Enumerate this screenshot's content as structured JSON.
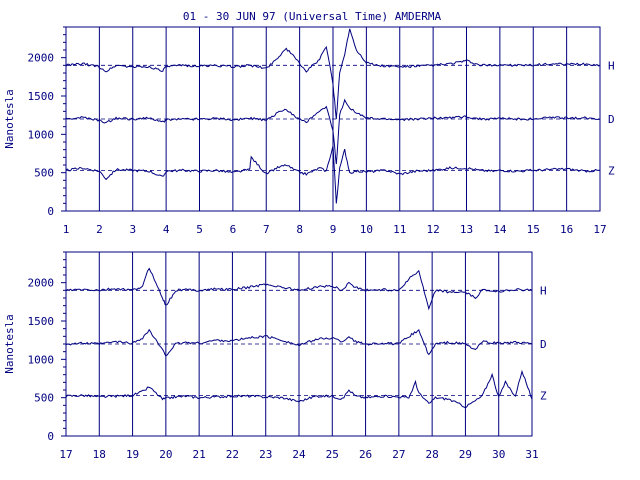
{
  "colors": {
    "ink": "#000080",
    "background": "#ffffff"
  },
  "chart_data": {
    "title": "01 - 30 JUN 97 (Universal Time) AMDERMA",
    "ylabel": "Nanotesla",
    "ylim": [
      0,
      2400
    ],
    "yticks": [
      "0",
      "500",
      "1000",
      "1500",
      "2000"
    ],
    "components": [
      "H",
      "D",
      "Z"
    ],
    "baselines": {
      "H": 1900,
      "D": 1200,
      "Z": 530
    },
    "panels": [
      {
        "type": "line",
        "xlim": [
          1,
          17
        ],
        "xticks": [
          "1",
          "2",
          "3",
          "4",
          "5",
          "6",
          "7",
          "8",
          "9",
          "10",
          "11",
          "12",
          "13",
          "14",
          "15",
          "16",
          "17"
        ],
        "series": [
          {
            "name": "H",
            "x": [
              1,
              1.5,
              2,
              2.2,
              2.5,
              3,
              3.5,
              3.9,
              4,
              4.5,
              5,
              5.5,
              6,
              6.5,
              7,
              7.3,
              7.6,
              7.9,
              8.2,
              8.6,
              8.8,
              9.0,
              9.1,
              9.2,
              9.35,
              9.5,
              9.7,
              10,
              10.3,
              10.6,
              11,
              11.5,
              12,
              12.5,
              13,
              13.4,
              13.8,
              14,
              14.5,
              15,
              15.5,
              16,
              16.5,
              17
            ],
            "y": [
              1900,
              1920,
              1880,
              1820,
              1900,
              1880,
              1880,
              1830,
              1880,
              1900,
              1890,
              1900,
              1880,
              1900,
              1860,
              1980,
              2120,
              1980,
              1820,
              1980,
              2150,
              1650,
              1200,
              1800,
              2050,
              2380,
              2100,
              1940,
              1900,
              1890,
              1880,
              1890,
              1900,
              1920,
              1960,
              1900,
              1900,
              1910,
              1900,
              1900,
              1920,
              1910,
              1920,
              1900
            ]
          },
          {
            "name": "D",
            "x": [
              1,
              1.5,
              2,
              2.2,
              2.5,
              3,
              3.5,
              3.9,
              4,
              4.5,
              5,
              5.5,
              6,
              6.5,
              7,
              7.3,
              7.6,
              7.9,
              8.2,
              8.6,
              8.8,
              9.0,
              9.1,
              9.2,
              9.35,
              9.5,
              9.7,
              10,
              10.3,
              10.6,
              11,
              11.5,
              12,
              12.5,
              13,
              13.4,
              13.8,
              14,
              14.5,
              15,
              15.5,
              16,
              16.5,
              17
            ],
            "y": [
              1200,
              1220,
              1180,
              1150,
              1210,
              1200,
              1210,
              1160,
              1190,
              1200,
              1200,
              1210,
              1190,
              1210,
              1180,
              1270,
              1330,
              1220,
              1160,
              1300,
              1350,
              1050,
              600,
              1250,
              1450,
              1350,
              1280,
              1210,
              1200,
              1200,
              1190,
              1200,
              1210,
              1220,
              1230,
              1200,
              1200,
              1210,
              1200,
              1200,
              1220,
              1210,
              1215,
              1200
            ]
          },
          {
            "name": "Z",
            "x": [
              1,
              1.5,
              2,
              2.2,
              2.5,
              3,
              3.5,
              3.9,
              4,
              4.5,
              5,
              5.5,
              6,
              6.5,
              6.55,
              7,
              7.3,
              7.6,
              7.9,
              8.2,
              8.6,
              8.8,
              9.0,
              9.1,
              9.2,
              9.35,
              9.5,
              9.7,
              10,
              10.3,
              10.6,
              11,
              11.5,
              12,
              12.5,
              13,
              13.4,
              13.8,
              14,
              14.5,
              15,
              15.5,
              16,
              16.5,
              17
            ],
            "y": [
              530,
              560,
              520,
              420,
              540,
              530,
              520,
              440,
              520,
              530,
              520,
              530,
              500,
              540,
              700,
              480,
              560,
              600,
              520,
              480,
              560,
              520,
              850,
              100,
              550,
              800,
              500,
              520,
              510,
              520,
              530,
              480,
              520,
              530,
              560,
              560,
              530,
              520,
              530,
              520,
              530,
              540,
              550,
              520,
              530
            ]
          }
        ]
      },
      {
        "type": "line",
        "xlim": [
          17,
          31
        ],
        "xticks": [
          "17",
          "18",
          "19",
          "20",
          "21",
          "22",
          "23",
          "24",
          "25",
          "26",
          "27",
          "28",
          "29",
          "30",
          "31"
        ],
        "series": [
          {
            "name": "H",
            "x": [
              17,
              17.5,
              18,
              18.5,
              19,
              19.3,
              19.5,
              19.7,
              19.9,
              20,
              20.3,
              20.6,
              21,
              21.5,
              22,
              22.5,
              23,
              23.5,
              24,
              24.5,
              25,
              25.3,
              25.5,
              25.7,
              26,
              26.5,
              27,
              27.3,
              27.6,
              27.9,
              28.1,
              28.5,
              29,
              29.3,
              29.5,
              30,
              30.5,
              31
            ],
            "y": [
              1900,
              1910,
              1900,
              1920,
              1900,
              1950,
              2200,
              2000,
              1800,
              1700,
              1900,
              1910,
              1900,
              1920,
              1910,
              1940,
              1980,
              1940,
              1900,
              1940,
              1960,
              1900,
              2000,
              1940,
              1900,
              1910,
              1900,
              2050,
              2150,
              1650,
              1900,
              1880,
              1870,
              1800,
              1900,
              1890,
              1910,
              1900
            ]
          },
          {
            "name": "D",
            "x": [
              17,
              17.5,
              18,
              18.5,
              19,
              19.3,
              19.5,
              19.7,
              19.9,
              20,
              20.3,
              20.6,
              21,
              21.5,
              22,
              22.5,
              23,
              23.5,
              24,
              24.5,
              25,
              25.3,
              25.5,
              25.7,
              26,
              26.5,
              27,
              27.3,
              27.6,
              27.9,
              28.1,
              28.5,
              29,
              29.3,
              29.5,
              30,
              30.5,
              31
            ],
            "y": [
              1200,
              1210,
              1200,
              1230,
              1210,
              1280,
              1380,
              1250,
              1120,
              1050,
              1200,
              1220,
              1210,
              1250,
              1240,
              1280,
              1300,
              1250,
              1180,
              1260,
              1280,
              1230,
              1300,
              1230,
              1200,
              1210,
              1200,
              1300,
              1380,
              1050,
              1200,
              1220,
              1200,
              1120,
              1230,
              1210,
              1220,
              1200
            ]
          },
          {
            "name": "Z",
            "x": [
              17,
              17.5,
              18,
              18.5,
              19,
              19.3,
              19.5,
              19.7,
              19.9,
              20,
              20.3,
              20.6,
              21,
              21.5,
              22,
              22.5,
              23,
              23.5,
              24,
              24.5,
              25,
              25.3,
              25.5,
              25.7,
              26,
              26.5,
              27,
              27.3,
              27.5,
              27.6,
              27.9,
              28.1,
              28.5,
              29,
              29.3,
              29.5,
              29.8,
              30,
              30.2,
              30.5,
              30.7,
              31
            ],
            "y": [
              520,
              530,
              510,
              520,
              530,
              580,
              640,
              560,
              480,
              490,
              510,
              520,
              500,
              510,
              520,
              520,
              510,
              500,
              450,
              520,
              520,
              480,
              600,
              520,
              500,
              520,
              510,
              500,
              700,
              560,
              420,
              500,
              480,
              380,
              460,
              520,
              800,
              500,
              700,
              520,
              850,
              480
            ]
          }
        ]
      }
    ],
    "legend": "right, component letters H, D, Z beside each trace"
  }
}
